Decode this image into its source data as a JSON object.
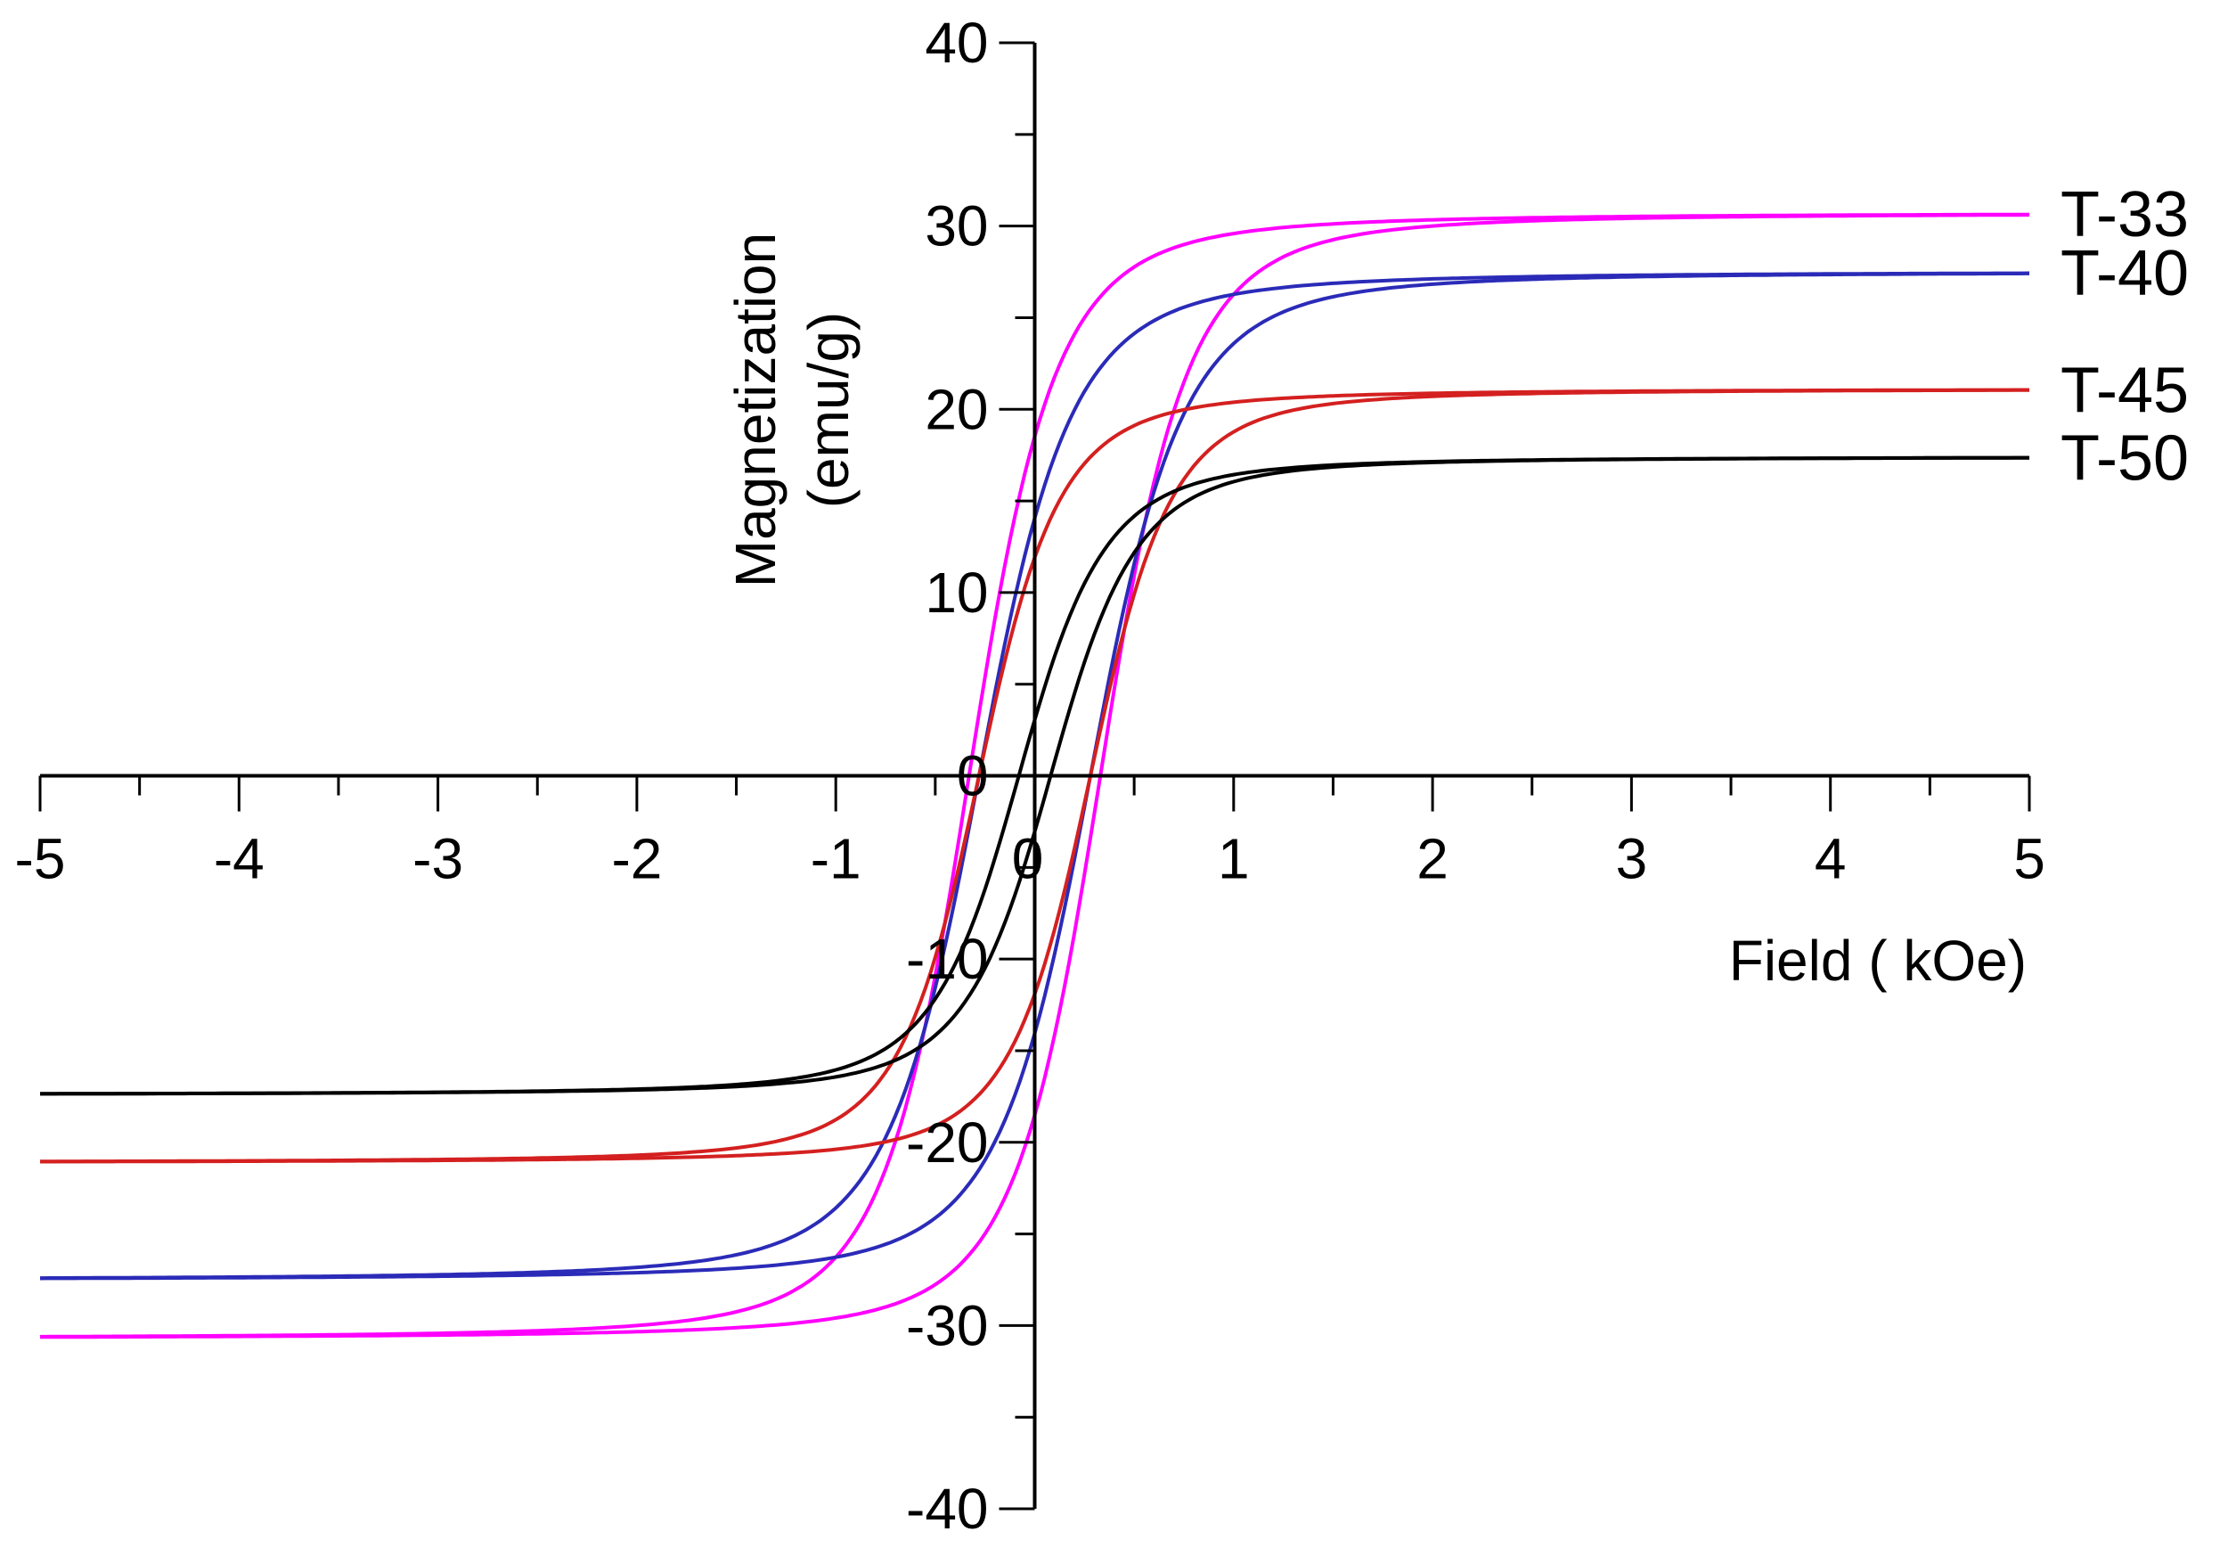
{
  "chart_data": {
    "type": "line",
    "title": "",
    "xlabel": "Field ( kOe)",
    "ylabel_line1": "Magnetization",
    "ylabel_line2": "(emu/g)",
    "xlim": [
      -5,
      5
    ],
    "ylim": [
      -40,
      40
    ],
    "x_ticks": [
      -5,
      -4,
      -3,
      -2,
      -1,
      0,
      1,
      2,
      3,
      4,
      5
    ],
    "y_ticks": [
      -40,
      -30,
      -20,
      -10,
      0,
      10,
      20,
      30,
      40
    ],
    "x_tick_labels": [
      "-5",
      "-4",
      "-3",
      "-2",
      "-1",
      "0",
      "1",
      "2",
      "3",
      "4",
      "5"
    ],
    "y_tick_labels": [
      "-40",
      "-30",
      "-20",
      "-10",
      "0",
      "10",
      "20",
      "30",
      "40"
    ],
    "grid": false,
    "legend": "labels at right end of curves",
    "series": [
      {
        "name": "T-33",
        "color": "#ff00ff",
        "saturation": 30.7,
        "coercivity": 0.33,
        "width": 0.45
      },
      {
        "name": "T-40",
        "color": "#2b2bb8",
        "saturation": 27.5,
        "coercivity": 0.28,
        "width": 0.48
      },
      {
        "name": "T-45",
        "color": "#d42020",
        "saturation": 21.1,
        "coercivity": 0.28,
        "width": 0.42
      },
      {
        "name": "T-50",
        "color": "#000000",
        "saturation": 17.4,
        "coercivity": 0.08,
        "width": 0.45
      }
    ]
  }
}
